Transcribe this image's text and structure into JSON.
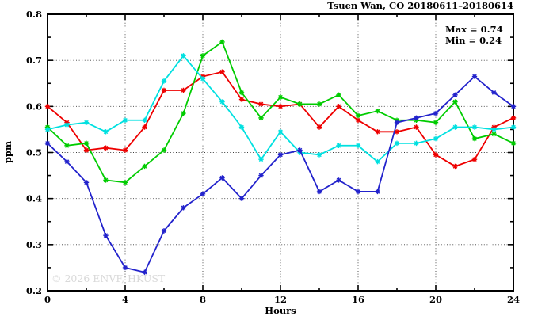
{
  "title": "Tsuen Wan, CO 20180611–20180614",
  "annotation": {
    "max_label": "Max = 0.74",
    "min_label": "Min = 0.24"
  },
  "watermark": "© 2026 ENVF, HKUST",
  "chart_data": {
    "type": "line",
    "title": "Tsuen Wan, CO 20180611–20180614",
    "xlabel": "Hours",
    "ylabel": "ppm",
    "xlim": [
      0,
      24
    ],
    "ylim": [
      0.2,
      0.8
    ],
    "x_ticks": [
      0,
      4,
      8,
      12,
      16,
      20,
      24
    ],
    "x_minor_step": 2,
    "y_ticks": [
      0.2,
      0.3,
      0.4,
      0.5,
      0.6,
      0.7,
      0.8
    ],
    "y_minor_step": 0.05,
    "x_grid": [
      4,
      8,
      12,
      16,
      20
    ],
    "y_grid": [
      0.3,
      0.4,
      0.5,
      0.6,
      0.7
    ],
    "grid_style": "dotted",
    "legend": "none",
    "marker": "asterisk",
    "x": [
      0,
      1,
      2,
      3,
      4,
      5,
      6,
      7,
      8,
      9,
      10,
      11,
      12,
      13,
      14,
      15,
      16,
      17,
      18,
      19,
      20,
      21,
      22,
      23,
      24
    ],
    "series": [
      {
        "name": "red",
        "color": "#ee0000",
        "values": [
          0.6,
          0.565,
          0.505,
          0.51,
          0.505,
          0.555,
          0.635,
          0.635,
          0.665,
          0.675,
          0.615,
          0.605,
          0.6,
          0.605,
          0.555,
          0.6,
          0.57,
          0.545,
          0.545,
          0.555,
          0.495,
          0.47,
          0.485,
          0.555,
          0.575
        ]
      },
      {
        "name": "green",
        "color": "#00cc00",
        "values": [
          0.555,
          0.515,
          0.52,
          0.44,
          0.435,
          0.47,
          0.505,
          0.585,
          0.71,
          0.74,
          0.63,
          0.575,
          0.62,
          0.605,
          0.605,
          0.625,
          0.58,
          0.59,
          0.57,
          0.57,
          0.565,
          0.61,
          0.53,
          0.54,
          0.52
        ]
      },
      {
        "name": "cyan",
        "color": "#00e0e0",
        "values": [
          0.55,
          0.56,
          0.565,
          0.545,
          0.57,
          0.57,
          0.655,
          0.71,
          0.66,
          0.61,
          0.555,
          0.485,
          0.545,
          0.5,
          0.495,
          0.515,
          0.515,
          0.48,
          0.52,
          0.52,
          0.53,
          0.555,
          0.555,
          0.55,
          0.555
        ]
      },
      {
        "name": "blue",
        "color": "#2222cc",
        "values": [
          0.52,
          0.48,
          0.435,
          0.32,
          0.25,
          0.24,
          0.33,
          0.38,
          0.41,
          0.445,
          0.4,
          0.45,
          0.495,
          0.505,
          0.415,
          0.44,
          0.415,
          0.415,
          0.565,
          0.575,
          0.585,
          0.625,
          0.665,
          0.63,
          0.6
        ]
      }
    ],
    "stats": {
      "max": 0.74,
      "min": 0.24
    }
  }
}
